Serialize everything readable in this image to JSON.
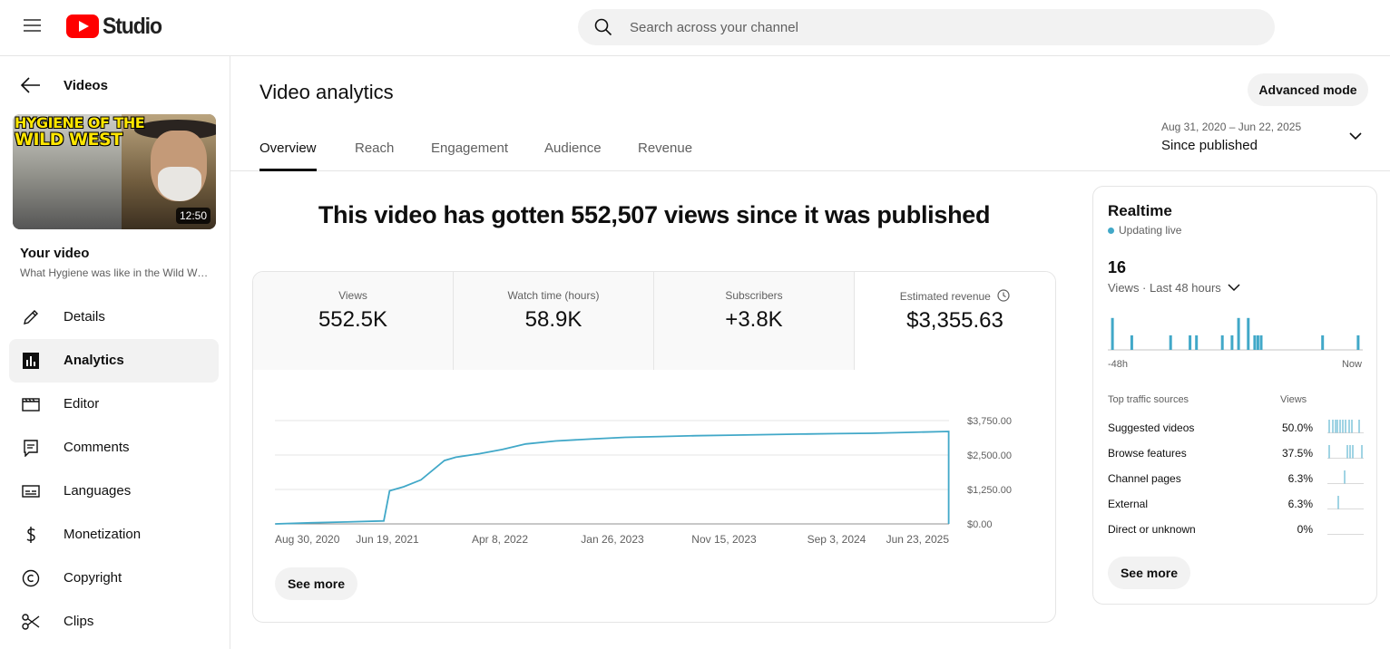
{
  "app": {
    "logo_text": "Studio"
  },
  "search": {
    "placeholder": "Search across your channel"
  },
  "sidebar": {
    "back_label": "Videos",
    "video": {
      "duration": "12:50",
      "thumb_caption_1": "HYGIENE OF THE",
      "thumb_caption_2": "WILD WEST",
      "section_label": "Your video",
      "title": "What Hygiene was like in the Wild West"
    },
    "items": [
      {
        "label": "Details",
        "icon": "pencil-icon"
      },
      {
        "label": "Analytics",
        "icon": "bar-chart-icon",
        "active": true
      },
      {
        "label": "Editor",
        "icon": "film-icon"
      },
      {
        "label": "Comments",
        "icon": "comment-icon"
      },
      {
        "label": "Languages",
        "icon": "subtitles-icon"
      },
      {
        "label": "Monetization",
        "icon": "dollar-icon"
      },
      {
        "label": "Copyright",
        "icon": "copyright-icon"
      },
      {
        "label": "Clips",
        "icon": "scissors-icon"
      }
    ]
  },
  "main": {
    "title": "Video analytics",
    "advanced_mode": "Advanced mode",
    "tabs": [
      "Overview",
      "Reach",
      "Engagement",
      "Audience",
      "Revenue"
    ],
    "date_range": {
      "range": "Aug 31, 2020 – Jun 22, 2025",
      "label": "Since published"
    },
    "headline": "This video has gotten 552,507 views since it was published",
    "metrics": [
      {
        "label": "Views",
        "value": "552.5K"
      },
      {
        "label": "Watch time (hours)",
        "value": "58.9K"
      },
      {
        "label": "Subscribers",
        "value": "+3.8K"
      },
      {
        "label": "Estimated revenue",
        "value": "$3,355.63"
      }
    ],
    "see_more": "See more"
  },
  "chart_data": {
    "type": "line",
    "ylabel": "",
    "y_tick_labels": [
      "$0.00",
      "$1,250.00",
      "$2,500.00",
      "$3,750.00"
    ],
    "y_ticks": [
      0,
      1250,
      2500,
      3750
    ],
    "ylim": [
      0,
      3750
    ],
    "x_tick_labels": [
      "Aug 30, 2020",
      "Jun 19, 2021",
      "Apr 8, 2022",
      "Jan 26, 2023",
      "Nov 15, 2023",
      "Sep 3, 2024",
      "Jun 23, 2025"
    ],
    "xlim": [
      "2020-08-30",
      "2025-06-23"
    ],
    "color": "#41a8c8",
    "series": [
      {
        "x": [
          "2020-08-31",
          "2020-12-01",
          "2021-03-01",
          "2021-06-10",
          "2021-06-25",
          "2021-08-01",
          "2021-09-15",
          "2021-11-15",
          "2021-12-15",
          "2022-02-15",
          "2022-04-15",
          "2022-06-15",
          "2022-09-01",
          "2022-12-01",
          "2023-03-01",
          "2023-06-01",
          "2023-09-01",
          "2023-12-01",
          "2024-03-01",
          "2024-06-01",
          "2024-09-01",
          "2024-12-01",
          "2025-03-01",
          "2025-06-22"
        ],
        "y": [
          0,
          40,
          70,
          110,
          1200,
          1350,
          1600,
          2300,
          2420,
          2550,
          2700,
          2900,
          3010,
          3080,
          3140,
          3170,
          3200,
          3220,
          3240,
          3260,
          3275,
          3290,
          3320,
          3355
        ]
      }
    ]
  },
  "realtime": {
    "title": "Realtime",
    "status": "Updating live",
    "count": "16",
    "views_label": "Views · Last 48 hours",
    "x_start": "-48h",
    "x_end": "Now",
    "bars_48h": [
      0,
      1,
      0,
      0,
      0,
      0,
      0,
      1,
      0,
      0,
      0,
      0,
      0,
      0,
      0,
      0,
      0,
      0,
      0,
      1,
      0,
      0,
      0,
      0,
      0,
      1,
      0,
      1,
      0,
      0,
      0,
      0,
      0,
      0,
      0,
      1,
      0,
      0,
      1,
      0,
      1,
      0,
      0,
      1,
      0,
      1,
      1,
      1,
      0,
      0,
      0,
      0,
      0,
      0,
      0,
      0,
      0,
      0,
      0,
      0,
      0,
      0,
      0,
      0,
      0,
      0,
      1,
      0,
      0,
      0,
      0,
      0,
      0,
      0,
      0,
      0,
      0,
      1,
      0
    ],
    "bar_heights": [
      0,
      2.2,
      0,
      0,
      0,
      0,
      0,
      1,
      0,
      0,
      0,
      0,
      0,
      0,
      0,
      0,
      0,
      0,
      0,
      1,
      0,
      0,
      0,
      0,
      0,
      1,
      0,
      1,
      0,
      0,
      0,
      0,
      0,
      0,
      0,
      1,
      0,
      0,
      1,
      0,
      2.2,
      0,
      0,
      2.2,
      0,
      1,
      1,
      1,
      0,
      0,
      0,
      0,
      0,
      0,
      0,
      0,
      0,
      0,
      0,
      0,
      0,
      0,
      0,
      0,
      0,
      0,
      1,
      0,
      0,
      0,
      0,
      0,
      0,
      0,
      0,
      0,
      0,
      1,
      0
    ],
    "sources_header": "Top traffic sources",
    "views_header": "Views",
    "sources": [
      {
        "name": "Suggested videos",
        "pct": "50.0%"
      },
      {
        "name": "Browse features",
        "pct": "37.5%"
      },
      {
        "name": "Channel pages",
        "pct": "6.3%"
      },
      {
        "name": "External",
        "pct": "6.3%"
      },
      {
        "name": "Direct or unknown",
        "pct": "0%"
      }
    ],
    "see_more": "See more"
  }
}
